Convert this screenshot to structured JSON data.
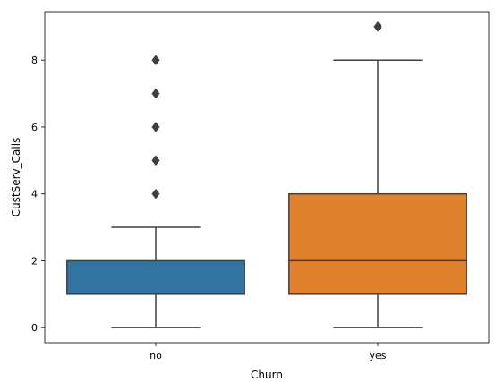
{
  "chart_data": {
    "type": "boxplot",
    "title": "",
    "xlabel": "Churn",
    "ylabel": "CustServ_Calls",
    "ylim": [
      -0.45,
      9.45
    ],
    "yticks": [
      0,
      2,
      4,
      6,
      8
    ],
    "categories": [
      "no",
      "yes"
    ],
    "boxes": [
      {
        "category": "no",
        "color": "#3274a1",
        "whisker_low": 0,
        "q1": 1,
        "median": 1,
        "q3": 2,
        "whisker_high": 3,
        "outliers": [
          4,
          5,
          6,
          7,
          8
        ]
      },
      {
        "category": "yes",
        "color": "#e1812c",
        "whisker_low": 0,
        "q1": 1,
        "median": 2,
        "q3": 4,
        "whisker_high": 8,
        "outliers": [
          9
        ]
      }
    ],
    "grid": false,
    "legend": "none"
  }
}
